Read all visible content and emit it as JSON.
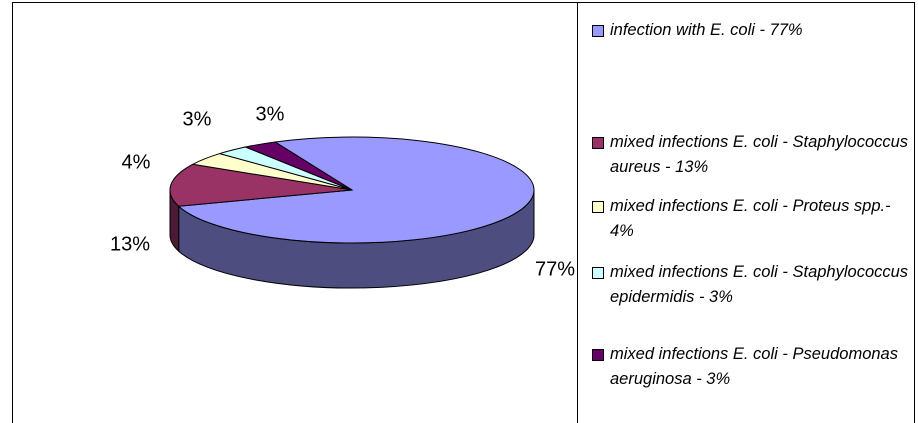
{
  "chart_data": {
    "type": "pie",
    "categories": [
      "infection with E. coli - 77%",
      "mixed infections E. coli - Staphylococcus aureus - 13%",
      "mixed infections E. coli - Proteus spp.- 4%",
      "mixed infections E. coli - Staphylococcus epidermidis - 3%",
      "mixed infections E. coli - Pseudomonas aeruginosa - 3%"
    ],
    "values": [
      77,
      13,
      4,
      3,
      3
    ],
    "value_labels": [
      "77%",
      "13%",
      "4%",
      "3%",
      "3%"
    ],
    "colors": [
      "#9999ff",
      "#993366",
      "#ffffcc",
      "#ccffff",
      "#660066"
    ],
    "legend": "right"
  }
}
